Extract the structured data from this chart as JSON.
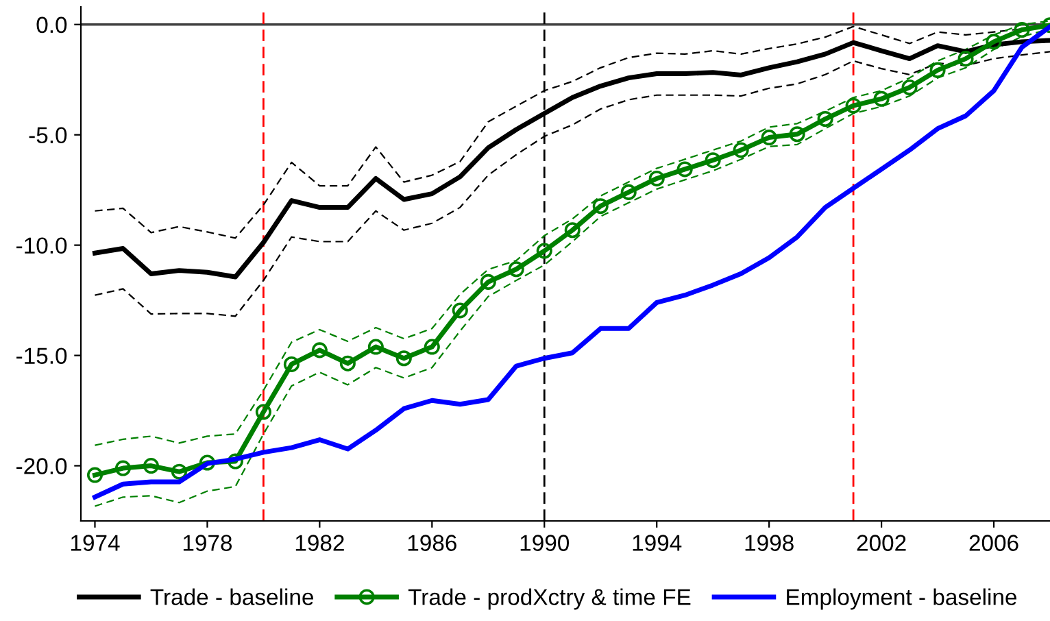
{
  "chart_data": {
    "type": "line",
    "x": [
      1974,
      1975,
      1976,
      1977,
      1978,
      1979,
      1980,
      1981,
      1982,
      1983,
      1984,
      1985,
      1986,
      1987,
      1988,
      1989,
      1990,
      1991,
      1992,
      1993,
      1994,
      1995,
      1996,
      1997,
      1998,
      1999,
      2000,
      2001,
      2002,
      2003,
      2004,
      2005,
      2006,
      2007,
      2008
    ],
    "series": [
      {
        "name": "Trade - baseline",
        "color": "#000000",
        "marker": "none",
        "line_style": "solid",
        "values": [
          -10.36,
          -10.15,
          -11.3,
          -11.15,
          -11.23,
          -11.44,
          -9.88,
          -7.98,
          -8.29,
          -8.29,
          -6.98,
          -7.93,
          -7.67,
          -6.9,
          -5.59,
          -4.76,
          -4.03,
          -3.31,
          -2.79,
          -2.42,
          -2.23,
          -2.23,
          -2.17,
          -2.29,
          -1.96,
          -1.69,
          -1.34,
          -0.82,
          -1.19,
          -1.55,
          -0.96,
          -1.23,
          -0.92,
          -0.78,
          -0.72
        ]
      },
      {
        "color": "#000000",
        "marker": "none",
        "line_style": "dashed",
        "values": [
          -8.45,
          -8.33,
          -9.43,
          -9.16,
          -9.4,
          -9.68,
          -8.18,
          -6.25,
          -7.31,
          -7.31,
          -5.55,
          -7.14,
          -6.83,
          -6.21,
          -4.41,
          -3.7,
          -3.0,
          -2.58,
          -1.96,
          -1.5,
          -1.3,
          -1.34,
          -1.19,
          -1.34,
          -1.09,
          -0.88,
          -0.57,
          -0.09,
          -0.47,
          -0.86,
          -0.34,
          -0.47,
          -0.34,
          -0.2,
          -0.09
        ]
      },
      {
        "color": "#000000",
        "marker": "none",
        "line_style": "dashed",
        "values": [
          -12.27,
          -11.98,
          -13.12,
          -13.1,
          -13.1,
          -13.22,
          -11.6,
          -9.63,
          -9.84,
          -9.84,
          -8.45,
          -9.32,
          -9.01,
          -8.29,
          -6.83,
          -5.9,
          -5.07,
          -4.55,
          -3.83,
          -3.41,
          -3.2,
          -3.2,
          -3.2,
          -3.24,
          -2.89,
          -2.69,
          -2.27,
          -1.65,
          -2.0,
          -2.27,
          -1.75,
          -1.86,
          -1.55,
          -1.38,
          -1.23
        ]
      },
      {
        "name": "Trade - prodXctry & time FE",
        "color": "#008000",
        "marker": "circle",
        "line_style": "solid",
        "values": [
          -20.42,
          -20.11,
          -20.0,
          -20.27,
          -19.86,
          -19.8,
          -17.56,
          -15.4,
          -14.76,
          -15.36,
          -14.61,
          -15.13,
          -14.61,
          -12.96,
          -11.67,
          -11.09,
          -10.26,
          -9.32,
          -8.23,
          -7.6,
          -6.98,
          -6.56,
          -6.15,
          -5.69,
          -5.12,
          -4.97,
          -4.28,
          -3.68,
          -3.37,
          -2.85,
          -2.07,
          -1.55,
          -0.78,
          -0.24,
          -0.03
        ]
      },
      {
        "color": "#008000",
        "marker": "none",
        "line_style": "dashed",
        "values": [
          -19.07,
          -18.8,
          -18.66,
          -18.97,
          -18.66,
          -18.56,
          -16.58,
          -14.4,
          -13.83,
          -14.36,
          -13.74,
          -14.24,
          -13.78,
          -12.23,
          -11.1,
          -10.7,
          -9.57,
          -8.81,
          -7.77,
          -7.14,
          -6.52,
          -6.11,
          -5.69,
          -5.28,
          -4.65,
          -4.49,
          -3.93,
          -3.31,
          -3.0,
          -2.42,
          -1.65,
          -1.13,
          -0.47,
          0.0,
          0.16
        ]
      },
      {
        "color": "#008000",
        "marker": "none",
        "line_style": "dashed",
        "values": [
          -21.83,
          -21.42,
          -21.36,
          -21.67,
          -21.15,
          -20.94,
          -18.56,
          -16.38,
          -15.76,
          -16.33,
          -15.55,
          -16.02,
          -15.55,
          -13.89,
          -12.33,
          -11.6,
          -10.9,
          -9.84,
          -8.7,
          -8.08,
          -7.46,
          -7.04,
          -6.63,
          -6.11,
          -5.53,
          -5.44,
          -4.72,
          -4.03,
          -3.72,
          -3.24,
          -2.42,
          -1.96,
          -1.13,
          -0.55,
          -0.2
        ]
      },
      {
        "name": "Employment - baseline",
        "color": "#0000ff",
        "marker": "none",
        "line_style": "solid",
        "values": [
          -21.42,
          -20.83,
          -20.73,
          -20.73,
          -19.9,
          -19.7,
          -19.39,
          -19.18,
          -18.82,
          -19.24,
          -18.39,
          -17.41,
          -17.04,
          -17.21,
          -17.0,
          -15.48,
          -15.13,
          -14.88,
          -13.78,
          -13.78,
          -12.6,
          -12.27,
          -11.81,
          -11.29,
          -10.57,
          -9.63,
          -8.29,
          -7.42,
          -6.56,
          -5.69,
          -4.72,
          -4.14,
          -3.0,
          -1.03,
          -0.1
        ]
      }
    ],
    "xlim": [
      1973.5,
      2008
    ],
    "xticks": [
      1974,
      1978,
      1982,
      1986,
      1990,
      1994,
      1998,
      2002,
      2006
    ],
    "ylim": [
      -22.5,
      0.8
    ],
    "yticks": [
      {
        "value": 0,
        "label": "0.0"
      },
      {
        "value": -5,
        "label": "-5.0"
      },
      {
        "value": -10,
        "label": "-10.0"
      },
      {
        "value": -15,
        "label": "-15.0"
      },
      {
        "value": -20,
        "label": "-20.0"
      }
    ],
    "ref_lines": [
      {
        "axis": "y",
        "value": 0,
        "color": "#404040",
        "line_style": "solid"
      },
      {
        "axis": "x",
        "value": 1980,
        "color": "#ff0000",
        "line_style": "dashed"
      },
      {
        "axis": "x",
        "value": 1990,
        "color": "#000000",
        "line_style": "dashed"
      },
      {
        "axis": "x",
        "value": 2001,
        "color": "#ff0000",
        "line_style": "dashed"
      }
    ],
    "grid": false,
    "legend": "bottom"
  }
}
